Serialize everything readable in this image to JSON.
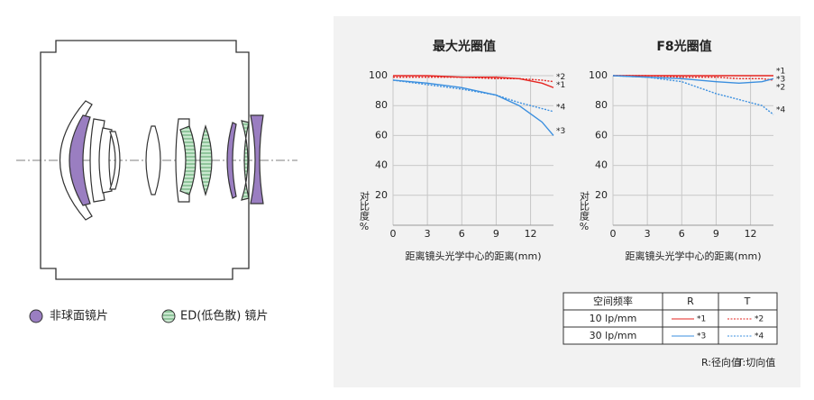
{
  "chart_data": [
    {
      "type": "line",
      "title": "最大光圈值",
      "x_label": "距离镜头光学中心的距离(mm)",
      "y_label": "对比度%",
      "x": [
        0,
        3,
        6,
        9,
        11,
        13,
        14
      ],
      "xlim": [
        0,
        14
      ],
      "xticks": [
        0,
        3,
        6,
        9,
        12
      ],
      "ylim": [
        0,
        100
      ],
      "yticks": [
        20,
        40,
        60,
        80,
        100
      ],
      "grid": true,
      "series": [
        {
          "name": "*1",
          "color": "#e52521",
          "dash": false,
          "values": [
            100,
            100,
            99,
            99,
            98,
            95,
            92
          ]
        },
        {
          "name": "*2",
          "color": "#e52521",
          "dash": true,
          "values": [
            99,
            99,
            99,
            98,
            98,
            97,
            96
          ]
        },
        {
          "name": "*3",
          "color": "#3b8fdf",
          "dash": false,
          "values": [
            97,
            95,
            92,
            87,
            80,
            69,
            60
          ]
        },
        {
          "name": "*4",
          "color": "#3b8fdf",
          "dash": true,
          "values": [
            97,
            94,
            91,
            87,
            82,
            78,
            76
          ]
        }
      ]
    },
    {
      "type": "line",
      "title": "F8光圈值",
      "x_label": "距离镜头光学中心的距离(mm)",
      "y_label": "对比度%",
      "x": [
        0,
        3,
        6,
        9,
        11,
        13,
        14
      ],
      "xlim": [
        0,
        14
      ],
      "xticks": [
        0,
        3,
        6,
        9,
        12
      ],
      "ylim": [
        0,
        100
      ],
      "yticks": [
        20,
        40,
        60,
        80,
        100
      ],
      "grid": true,
      "series": [
        {
          "name": "*1",
          "color": "#e52521",
          "dash": false,
          "values": [
            100,
            100,
            100,
            100,
            100,
            100,
            100
          ]
        },
        {
          "name": "*2",
          "color": "#e52521",
          "dash": true,
          "values": [
            100,
            100,
            99,
            99,
            98,
            98,
            97
          ]
        },
        {
          "name": "*3",
          "color": "#3b8fdf",
          "dash": false,
          "values": [
            100,
            99,
            98,
            96,
            95,
            96,
            98
          ]
        },
        {
          "name": "*4",
          "color": "#3b8fdf",
          "dash": true,
          "values": [
            100,
            99,
            96,
            88,
            84,
            80,
            74
          ]
        }
      ]
    }
  ],
  "lens_legend": [
    "非球面镜片",
    "ED(低色散) 镜片"
  ],
  "table": {
    "header": [
      "空间频率",
      "R",
      "T"
    ],
    "rows": [
      [
        "10 lp/mm",
        "*1",
        "*2"
      ],
      [
        "30 lp/mm",
        "*3",
        "*4"
      ]
    ]
  },
  "notes": [
    "R:径向值",
    "T:切向值"
  ]
}
